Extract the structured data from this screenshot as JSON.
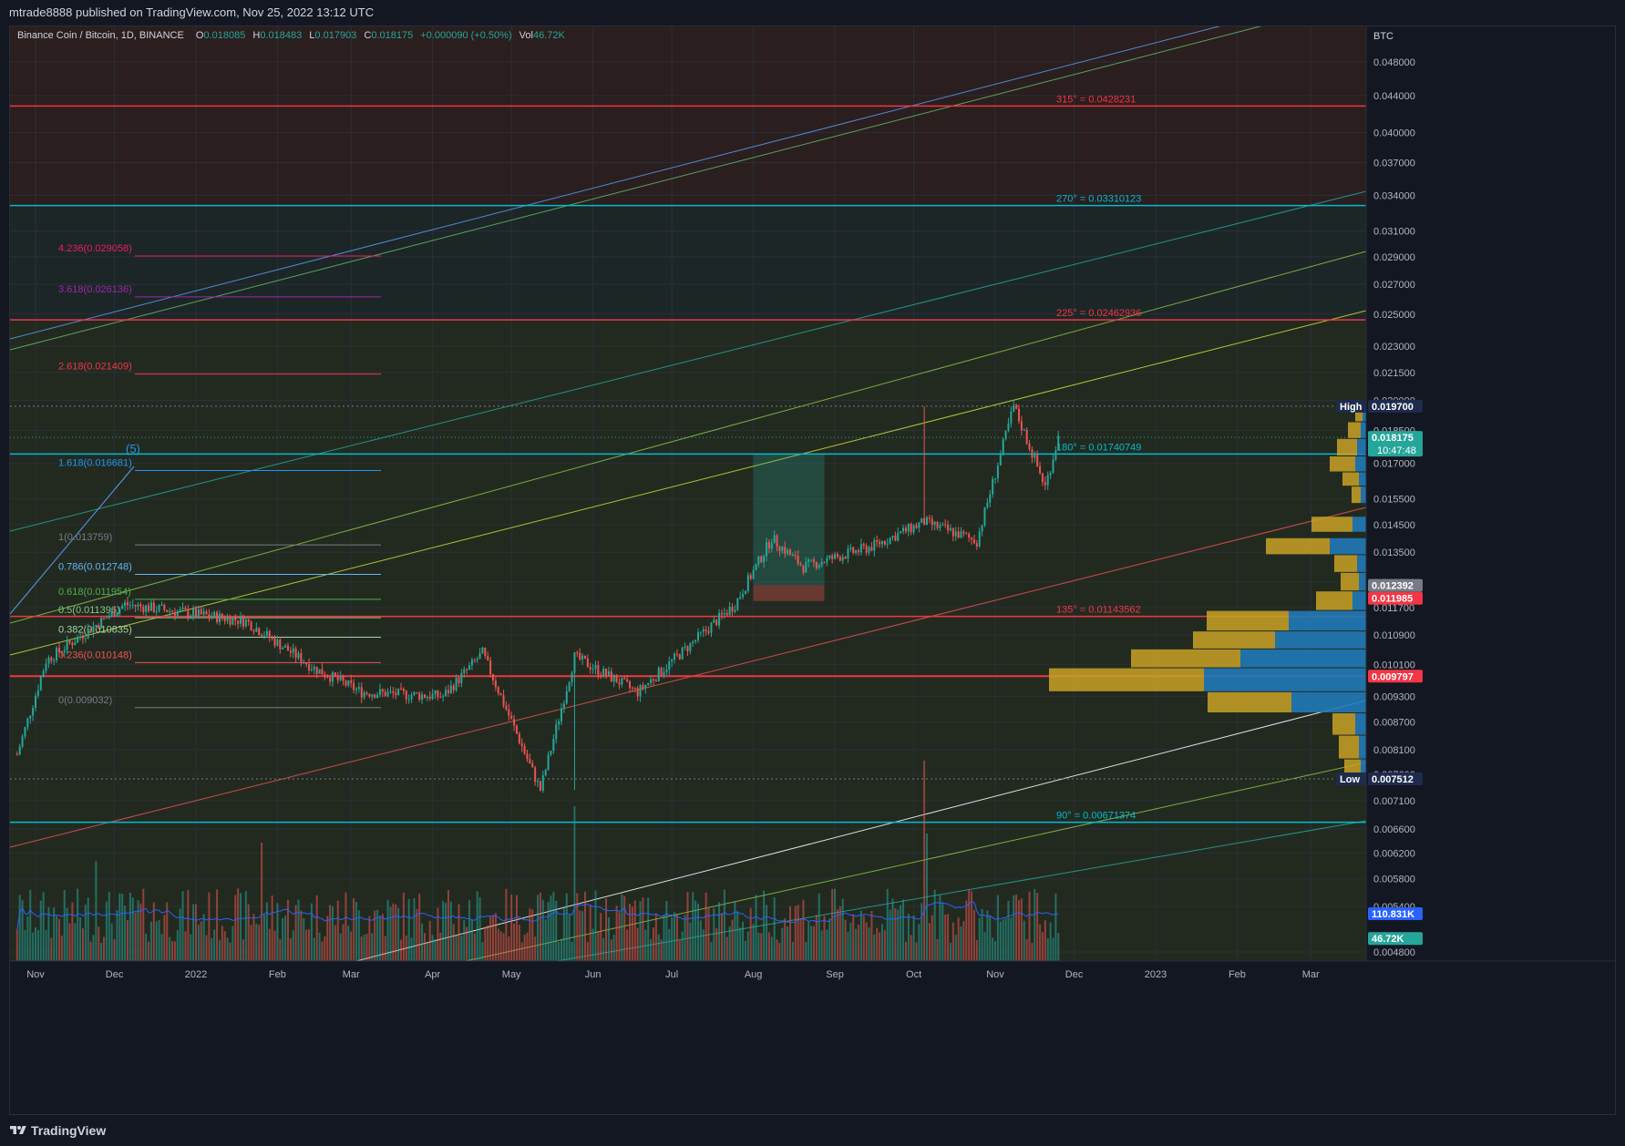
{
  "header": {
    "published": "mtrade8888 published on TradingView.com, Nov 25, 2022 13:12 UTC"
  },
  "legend": {
    "symbol": "Binance Coin / Bitcoin, 1D, BINANCE",
    "open_label": "O",
    "open": "0.018085",
    "high_label": "H",
    "high": "0.018483",
    "low_label": "L",
    "low": "0.017903",
    "close_label": "C",
    "close": "0.018175",
    "change": "+0.000090 (+0.50%)",
    "vol_label": "Vol",
    "vol": "46.72K"
  },
  "price_axis": {
    "unit": "BTC",
    "ticks": [
      "0.048000",
      "0.044000",
      "0.040000",
      "0.037000",
      "0.034000",
      "0.031000",
      "0.029000",
      "0.027000",
      "0.025000",
      "0.023000",
      "0.021500",
      "0.020000",
      "0.018500",
      "0.017000",
      "0.015500",
      "0.014500",
      "0.013500",
      "0.012500",
      "0.011700",
      "0.010900",
      "0.010100",
      "0.009300",
      "0.008700",
      "0.008100",
      "0.007600",
      "0.007100",
      "0.006600",
      "0.006200",
      "0.005800",
      "0.005400",
      "0.004800"
    ],
    "labels": {
      "high_tag": "High",
      "high_value": "0.019700",
      "last_value": "0.018175",
      "countdown": "10:47:48",
      "level_a": "0.012392",
      "level_b": "0.011985",
      "poc_value": "0.009797",
      "low_tag": "Low",
      "low_value": "0.007512",
      "vol_ma": "110.831K",
      "vol_last": "46.72K"
    }
  },
  "time_axis": {
    "labels": [
      "Nov",
      "Dec",
      "2022",
      "Feb",
      "Mar",
      "Apr",
      "May",
      "Jun",
      "Jul",
      "Aug",
      "Sep",
      "Oct",
      "Nov",
      "Dec",
      "2023",
      "Feb",
      "Mar"
    ]
  },
  "gann_levels": [
    {
      "label": "315° = 0.0428231",
      "price": 0.0428231,
      "color": "#f23645"
    },
    {
      "label": "270° = 0.03310123",
      "price": 0.03310123,
      "color": "#00bcd4"
    },
    {
      "label": "225° = 0.02462936",
      "price": 0.02462936,
      "color": "#f23645"
    },
    {
      "label": "180° = 0.01740749",
      "price": 0.01740749,
      "color": "#00bcd4"
    },
    {
      "label": "135° = 0.01143562",
      "price": 0.01143562,
      "color": "#f23645"
    },
    {
      "label": "90° = 0.00671374",
      "price": 0.00671374,
      "color": "#00bcd4"
    }
  ],
  "fib_levels": [
    {
      "label": "4.236(0.029058)",
      "price": 0.029058,
      "color": "#e91e63"
    },
    {
      "label": "3.618(0.026136)",
      "price": 0.026136,
      "color": "#9c27b0"
    },
    {
      "label": "2.618(0.021409)",
      "price": 0.021409,
      "color": "#f23645"
    },
    {
      "label": "1.618(0.016681)",
      "price": 0.016681,
      "color": "#2196f3"
    },
    {
      "label": "1(0.013759)",
      "price": 0.013759,
      "color": "#787b86"
    },
    {
      "label": "0.786(0.012748)",
      "price": 0.012748,
      "color": "#64b5f6"
    },
    {
      "label": "0.618(0.011954)",
      "price": 0.011954,
      "color": "#4caf50"
    },
    {
      "label": "0.5(0.011396)",
      "price": 0.011396,
      "color": "#81c784"
    },
    {
      "label": "0.382(0.010835)",
      "price": 0.010835,
      "color": "#a5d6a7"
    },
    {
      "label": "0.236(0.010148)",
      "price": 0.010148,
      "color": "#ef5350"
    },
    {
      "label": "0(0.009032)",
      "price": 0.009032,
      "color": "#787b86"
    }
  ],
  "wave_label": "(5)",
  "footer": {
    "brand": "TradingView"
  },
  "colors": {
    "up": "#26a69a",
    "down": "#ef5350",
    "bg": "#131722",
    "grid": "#1f2430"
  },
  "chart_data": {
    "type": "candlestick",
    "symbol": "BNBBTC",
    "interval": "1D",
    "x_axis": "time",
    "y_axis": "price (BTC), log scale",
    "key_points": [
      {
        "date": "2021-10-25",
        "price": 0.008
      },
      {
        "date": "2021-11-05",
        "price": 0.0102
      },
      {
        "date": "2021-12-05",
        "price": 0.0118
      },
      {
        "date": "2022-01-20",
        "price": 0.0113
      },
      {
        "date": "2022-02-15",
        "price": 0.01
      },
      {
        "date": "2022-03-05",
        "price": 0.0094
      },
      {
        "date": "2022-04-05",
        "price": 0.0093
      },
      {
        "date": "2022-04-20",
        "price": 0.0104
      },
      {
        "date": "2022-05-12",
        "price": 0.0073
      },
      {
        "date": "2022-05-25",
        "price": 0.0103
      },
      {
        "date": "2022-06-18",
        "price": 0.0094
      },
      {
        "date": "2022-07-25",
        "price": 0.0118
      },
      {
        "date": "2022-08-08",
        "price": 0.014
      },
      {
        "date": "2022-08-20",
        "price": 0.013
      },
      {
        "date": "2022-09-15",
        "price": 0.0137
      },
      {
        "date": "2022-10-05",
        "price": 0.0146
      },
      {
        "date": "2022-10-25",
        "price": 0.0139
      },
      {
        "date": "2022-11-08",
        "price": 0.0197
      },
      {
        "date": "2022-11-20",
        "price": 0.016
      },
      {
        "date": "2022-11-25",
        "price": 0.018175
      }
    ],
    "high": 0.0197,
    "low": 0.007512
  }
}
